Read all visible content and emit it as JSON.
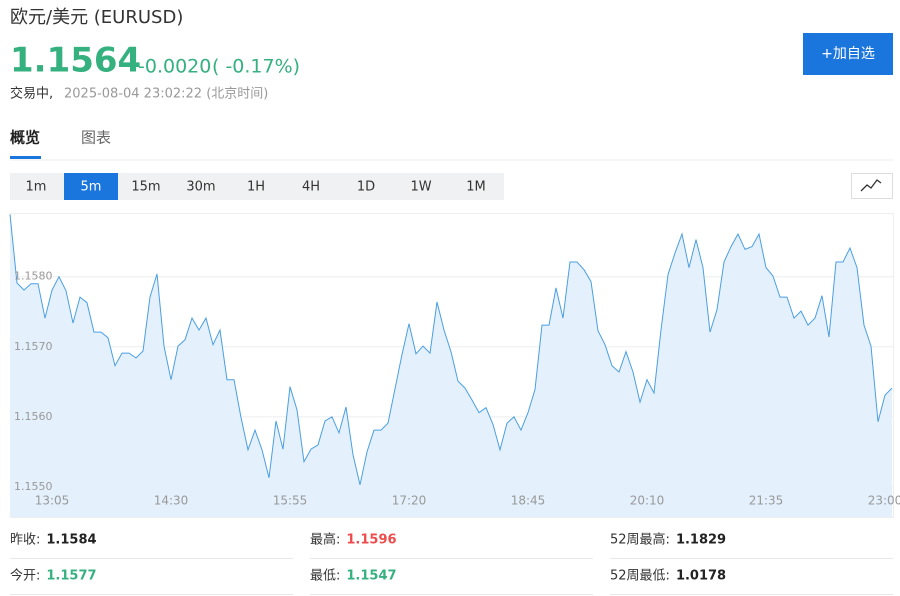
{
  "header": {
    "title": "欧元/美元 (EURUSD)",
    "price": 1.1564,
    "change": "-0.0020",
    "change_pct": "( -0.17%)",
    "status": "交易中,",
    "time": "2025-08-04 23:02:22 (北京时间)",
    "button": "+加自选",
    "color": "#35b07f"
  },
  "tabs": {
    "items": [
      "概览",
      "图表"
    ],
    "active": "概览"
  },
  "intervals": {
    "items": [
      "1m",
      "5m",
      "15m",
      "30m",
      "1H",
      "4H",
      "1D",
      "1W",
      "1M"
    ],
    "active": "5m"
  },
  "stats": [
    {
      "label": "昨收:",
      "value": 1.1584,
      "color": "#222222"
    },
    {
      "label": "最高:",
      "value": 1.1596,
      "color": "#ee4c4c"
    },
    {
      "label": "52周最高:",
      "value": 1.1829,
      "color": "#222222"
    },
    {
      "label": "今开:",
      "value": 1.1577,
      "color": "#35b07f"
    },
    {
      "label": "最低:",
      "value": 1.1547,
      "color": "#35b07f"
    },
    {
      "label": "52周最低:",
      "value": 1.0178,
      "color": "#222222"
    }
  ],
  "chart_data": {
    "type": "area",
    "color": "#4b9fe1",
    "fill": "#e4f0fc",
    "grid": true,
    "x": [
      "12:35",
      "12:40",
      "12:45",
      "12:50",
      "12:55",
      "13:00",
      "13:05",
      "13:10",
      "13:15",
      "13:20",
      "13:25",
      "13:30",
      "13:35",
      "13:40",
      "13:45",
      "13:50",
      "13:55",
      "14:00",
      "14:05",
      "14:10",
      "14:15",
      "14:20",
      "14:25",
      "14:30",
      "14:35",
      "14:40",
      "14:45",
      "14:50",
      "14:55",
      "15:00",
      "15:05",
      "15:10",
      "15:15",
      "15:20",
      "15:25",
      "15:30",
      "15:35",
      "15:40",
      "15:45",
      "15:50",
      "15:55",
      "16:00",
      "16:05",
      "16:10",
      "16:15",
      "16:20",
      "16:25",
      "16:30",
      "16:35",
      "16:40",
      "16:45",
      "16:50",
      "16:55",
      "17:00",
      "17:05",
      "17:10",
      "17:15",
      "17:20",
      "17:25",
      "17:30",
      "17:35",
      "17:40",
      "17:45",
      "17:50",
      "17:55",
      "18:00",
      "18:05",
      "18:10",
      "18:15",
      "18:20",
      "18:25",
      "18:30",
      "18:35",
      "18:40",
      "18:45",
      "18:50",
      "18:55",
      "19:00",
      "19:05",
      "19:10",
      "19:15",
      "19:20",
      "19:25",
      "19:30",
      "19:35",
      "19:40",
      "19:45",
      "19:50",
      "19:55",
      "20:00",
      "20:05",
      "20:10",
      "20:15",
      "20:20",
      "20:25",
      "20:30",
      "20:35",
      "20:40",
      "20:45",
      "20:50",
      "20:55",
      "21:00",
      "21:05",
      "21:10",
      "21:15",
      "21:20",
      "21:25",
      "21:30",
      "21:35",
      "21:40",
      "21:45",
      "21:50",
      "21:55",
      "22:00",
      "22:05",
      "22:10",
      "22:15",
      "22:20",
      "22:25",
      "22:30",
      "22:35",
      "22:40",
      "22:45",
      "22:50",
      "22:55",
      "23:00",
      "23:05"
    ],
    "values": [
      1.15889,
      1.15791,
      1.15781,
      1.1579,
      1.1579,
      1.15741,
      1.15781,
      1.158,
      1.1578,
      1.15734,
      1.15771,
      1.15763,
      1.15721,
      1.15721,
      1.15713,
      1.15673,
      1.15691,
      1.15691,
      1.15684,
      1.15694,
      1.15771,
      1.15804,
      1.15701,
      1.15653,
      1.15701,
      1.1571,
      1.15741,
      1.15724,
      1.15741,
      1.15703,
      1.15724,
      1.15653,
      1.15653,
      1.15599,
      1.15553,
      1.15581,
      1.15553,
      1.15513,
      1.15594,
      1.15554,
      1.15643,
      1.1561,
      1.15536,
      1.15554,
      1.1556,
      1.15594,
      1.156,
      1.15577,
      1.15614,
      1.15546,
      1.15503,
      1.1555,
      1.15581,
      1.15581,
      1.15591,
      1.1564,
      1.15689,
      1.15733,
      1.1569,
      1.15701,
      1.15691,
      1.15764,
      1.15724,
      1.15693,
      1.15651,
      1.15641,
      1.15624,
      1.15606,
      1.15613,
      1.15589,
      1.15553,
      1.15591,
      1.156,
      1.15581,
      1.15606,
      1.15639,
      1.15731,
      1.15731,
      1.15784,
      1.15741,
      1.15821,
      1.15821,
      1.1581,
      1.15793,
      1.15723,
      1.15703,
      1.15673,
      1.15664,
      1.15693,
      1.15664,
      1.15621,
      1.15653,
      1.15634,
      1.15724,
      1.15803,
      1.15834,
      1.15861,
      1.15813,
      1.15853,
      1.15813,
      1.15721,
      1.15753,
      1.15821,
      1.15843,
      1.15861,
      1.15839,
      1.15843,
      1.15861,
      1.15813,
      1.15801,
      1.15771,
      1.15771,
      1.15741,
      1.15751,
      1.15731,
      1.15741,
      1.15773,
      1.15714,
      1.15821,
      1.15821,
      1.15841,
      1.15813,
      1.15731,
      1.15701,
      1.15593,
      1.15631,
      1.15641
    ],
    "ylim": [
      1.15457,
      1.15891
    ],
    "yticks": [
      {
        "value": 1.155,
        "label": "1.1550"
      },
      {
        "value": 1.156,
        "label": "1.1560"
      },
      {
        "value": 1.157,
        "label": "1.1570"
      },
      {
        "value": 1.158,
        "label": "1.1580"
      }
    ],
    "xticks": [
      "13:05",
      "14:30",
      "15:55",
      "17:20",
      "18:45",
      "20:10",
      "21:35",
      "23:00"
    ]
  }
}
